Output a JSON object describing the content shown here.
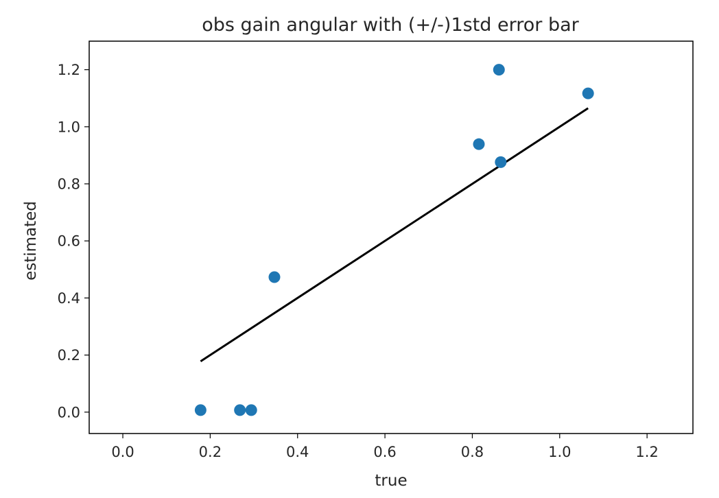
{
  "chart_data": {
    "type": "scatter",
    "title": "obs gain angular with (+/-)1std error bar",
    "xlabel": "true",
    "ylabel": "estimated",
    "xlim": [
      -0.077,
      1.305
    ],
    "ylim": [
      -0.075,
      1.3
    ],
    "xticks": [
      0.0,
      0.2,
      0.4,
      0.6,
      0.8,
      1.0,
      1.2
    ],
    "xtick_labels": [
      "0.0",
      "0.2",
      "0.4",
      "0.6",
      "0.8",
      "1.0",
      "1.2"
    ],
    "yticks": [
      0.0,
      0.2,
      0.4,
      0.6,
      0.8,
      1.0,
      1.2
    ],
    "ytick_labels": [
      "0.0",
      "0.2",
      "0.4",
      "0.6",
      "0.8",
      "1.0",
      "1.2"
    ],
    "grid": false,
    "points": {
      "color": "#1f77b4",
      "x": [
        0.178,
        0.268,
        0.294,
        0.347,
        0.815,
        0.861,
        0.865,
        1.065
      ],
      "y": [
        0.007,
        0.007,
        0.007,
        0.473,
        0.939,
        1.2,
        0.876,
        1.117
      ]
    },
    "fit_line": {
      "color": "#000000",
      "x": [
        0.178,
        1.065
      ],
      "y": [
        0.178,
        1.065
      ]
    }
  }
}
